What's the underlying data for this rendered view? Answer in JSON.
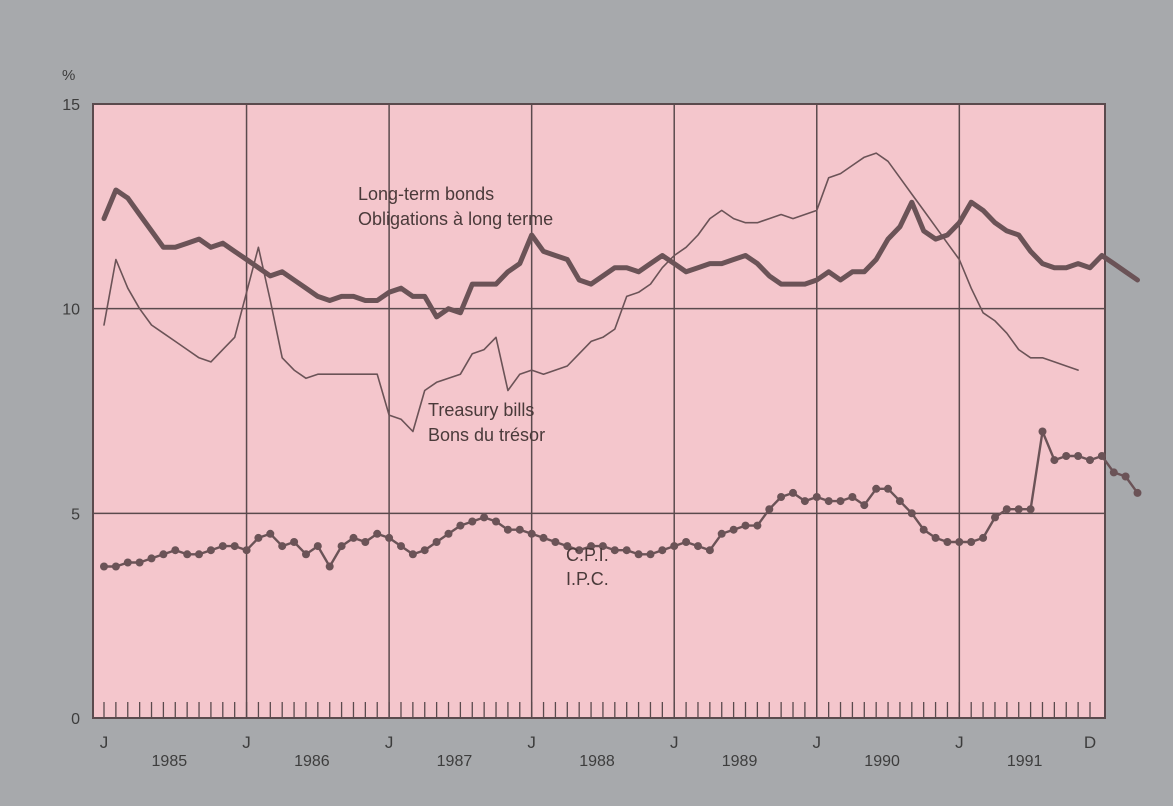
{
  "chart_data": {
    "type": "line",
    "y_unit_label": "%",
    "ylim": [
      0,
      15
    ],
    "y_ticks": [
      "0",
      "5",
      "10",
      "15"
    ],
    "x_range": [
      "1985-01",
      "1991-12"
    ],
    "x_marker_labels": [
      "J",
      "J",
      "J",
      "J",
      "J",
      "J",
      "J",
      "D"
    ],
    "year_labels": [
      "1985",
      "1986",
      "1987",
      "1988",
      "1989",
      "1990",
      "1991"
    ],
    "grid": true,
    "colors": {
      "background": "#a7a9ac",
      "plot": "#f4c6cc",
      "line": "#6b5357",
      "grid": "#5a4a4d"
    },
    "series": [
      {
        "name": "Long-term bonds / Obligations à long terme",
        "label_lines": [
          "Long-term bonds",
          "Obligations à long terme"
        ],
        "style": "thick",
        "start": "1985-01",
        "values": [
          12.2,
          12.9,
          12.7,
          12.3,
          11.9,
          11.5,
          11.5,
          11.6,
          11.7,
          11.5,
          11.6,
          11.4,
          11.2,
          11.0,
          10.8,
          10.9,
          10.7,
          10.5,
          10.3,
          10.2,
          10.3,
          10.3,
          10.2,
          10.2,
          10.4,
          10.5,
          10.3,
          10.3,
          9.8,
          10.0,
          9.9,
          10.6,
          10.6,
          10.6,
          10.9,
          11.1,
          11.8,
          11.4,
          11.3,
          11.2,
          10.7,
          10.6,
          10.8,
          11.0,
          11.0,
          10.9,
          11.1,
          11.3,
          11.1,
          10.9,
          11.0,
          11.1,
          11.1,
          11.2,
          11.3,
          11.1,
          10.8,
          10.6,
          10.6,
          10.6,
          10.7,
          10.9,
          10.7,
          10.9,
          10.9,
          11.2,
          11.7,
          12.0,
          12.6,
          11.9,
          11.7,
          11.8,
          12.1,
          12.6,
          12.4,
          12.1,
          11.9,
          11.8,
          11.4,
          11.1,
          11.0,
          11.0,
          11.1,
          11.0,
          11.3,
          11.1,
          10.9,
          10.7
        ]
      },
      {
        "name": "Treasury bills / Bons du trésor",
        "label_lines": [
          "Treasury bills",
          "Bons du trésor"
        ],
        "style": "thin",
        "start": "1985-01",
        "values": [
          9.6,
          11.2,
          10.5,
          10.0,
          9.6,
          9.4,
          9.2,
          9.0,
          8.8,
          8.7,
          9.0,
          9.3,
          10.4,
          11.5,
          10.2,
          8.8,
          8.5,
          8.3,
          8.4,
          8.4,
          8.4,
          8.4,
          8.4,
          8.4,
          7.4,
          7.3,
          7.0,
          8.0,
          8.2,
          8.3,
          8.4,
          8.9,
          9.0,
          9.3,
          8.0,
          8.4,
          8.5,
          8.4,
          8.5,
          8.6,
          8.9,
          9.2,
          9.3,
          9.5,
          10.3,
          10.4,
          10.6,
          11.0,
          11.3,
          11.5,
          11.8,
          12.2,
          12.4,
          12.2,
          12.1,
          12.1,
          12.2,
          12.3,
          12.2,
          12.3,
          12.4,
          13.2,
          13.3,
          13.5,
          13.7,
          13.8,
          13.6,
          13.2,
          12.8,
          12.4,
          12.0,
          11.6,
          11.2,
          10.5,
          9.9,
          9.7,
          9.4,
          9.0,
          8.8,
          8.8,
          8.7,
          8.6,
          8.5
        ]
      },
      {
        "name": "C.P.I. / I.P.C.",
        "label_lines": [
          "C.P.I.",
          "I.P.C."
        ],
        "style": "dotted",
        "start": "1985-01",
        "values": [
          3.7,
          3.7,
          3.8,
          3.8,
          3.9,
          4.0,
          4.1,
          4.0,
          4.0,
          4.1,
          4.2,
          4.2,
          4.1,
          4.4,
          4.5,
          4.2,
          4.3,
          4.0,
          4.2,
          3.7,
          4.2,
          4.4,
          4.3,
          4.5,
          4.4,
          4.2,
          4.0,
          4.1,
          4.3,
          4.5,
          4.7,
          4.8,
          4.9,
          4.8,
          4.6,
          4.6,
          4.5,
          4.4,
          4.3,
          4.2,
          4.1,
          4.2,
          4.2,
          4.1,
          4.1,
          4.0,
          4.0,
          4.1,
          4.2,
          4.3,
          4.2,
          4.1,
          4.5,
          4.6,
          4.7,
          4.7,
          5.1,
          5.4,
          5.5,
          5.3,
          5.4,
          5.3,
          5.3,
          5.4,
          5.2,
          5.6,
          5.6,
          5.3,
          5.0,
          4.6,
          4.4,
          4.3,
          4.3,
          4.3,
          4.4,
          4.9,
          5.1,
          5.1,
          5.1,
          7.0,
          6.3,
          6.4,
          6.4,
          6.3,
          6.4,
          6.0,
          5.9,
          5.5
        ]
      }
    ]
  }
}
